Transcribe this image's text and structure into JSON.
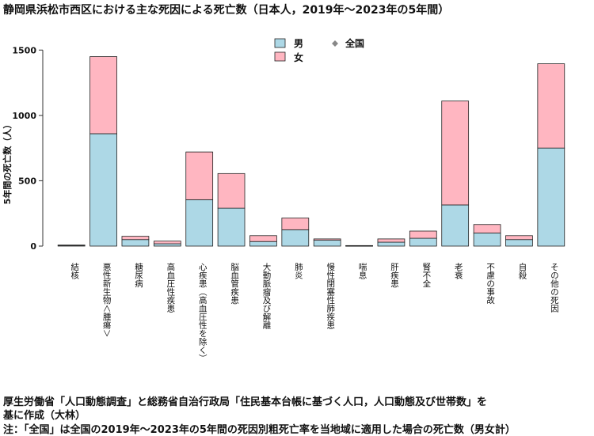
{
  "chart_data": {
    "type": "bar",
    "stacked": true,
    "title": "静岡県浜松市西区における主な死因による死亡数（日本人，2019年～2023年の5年間）",
    "ylabel": "5年間の死亡数（人）",
    "ylim": [
      0,
      1550
    ],
    "yticks": [
      "0",
      "500",
      "1000",
      "1500"
    ],
    "categories": [
      "結核",
      "悪性新生物＜腫瘍＞",
      "糖尿病",
      "高血圧性疾患",
      "心疾患（高血圧性を除く）",
      "脳血管疾患",
      "大動脈瘤及び解離",
      "肺炎",
      "慢性閉塞性肺疾患",
      "喘息",
      "肝疾患",
      "腎不全",
      "老衰",
      "不慮の事故",
      "自殺",
      "その他の死因"
    ],
    "series": [
      {
        "name": "男",
        "color": "#add8e6",
        "values": [
          5,
          860,
          50,
          18,
          355,
          290,
          35,
          125,
          45,
          2,
          30,
          60,
          315,
          100,
          50,
          750
        ]
      },
      {
        "name": "女",
        "color": "#ffb6c1",
        "values": [
          3,
          590,
          25,
          20,
          365,
          265,
          45,
          90,
          10,
          2,
          25,
          55,
          795,
          65,
          30,
          645
        ]
      }
    ],
    "legend": {
      "position": "top-center",
      "items": [
        {
          "label": "男",
          "swatch": "#add8e6"
        },
        {
          "label": "女",
          "swatch": "#ffb6c1"
        },
        {
          "label": "全国",
          "marker": "diamond"
        }
      ]
    },
    "grid": false
  },
  "captions": {
    "line1": "厚生労働省「人口動態調査」と総務省自治行政局「住民基本台帳に基づく人口，人口動態及び世帯数」を",
    "line2": "基に作成（大林）",
    "line3": "注：「全国」は全国の2019年～2023年の5年間の死因別粗死亡率を当地域に適用した場合の死亡数（男女計）"
  }
}
